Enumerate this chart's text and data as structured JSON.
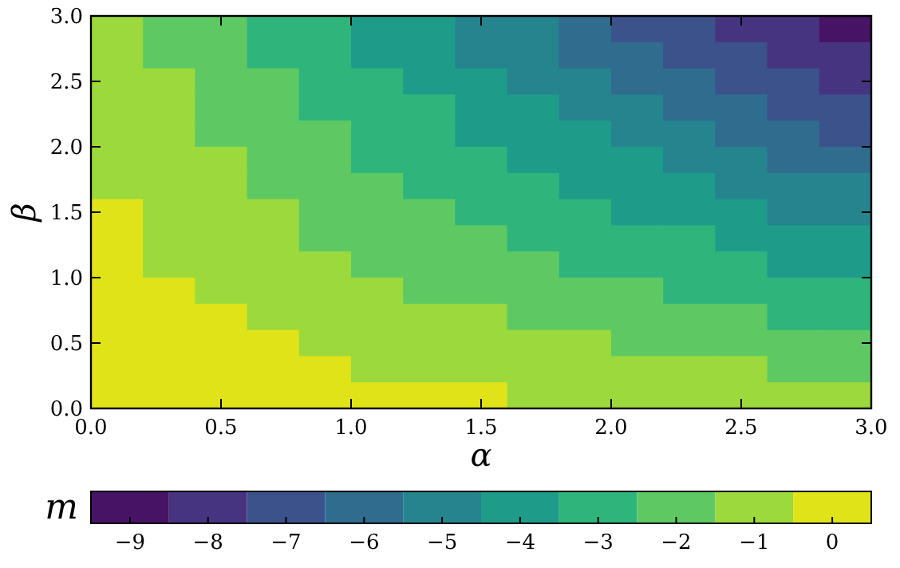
{
  "chart_data": {
    "type": "heatmap",
    "xlabel": "α",
    "ylabel": "β",
    "clabel": "m",
    "x": [
      0.1,
      0.3,
      0.5,
      0.7,
      0.9,
      1.1,
      1.3,
      1.5,
      1.7,
      1.9,
      2.1,
      2.3,
      2.5,
      2.7,
      2.9
    ],
    "y": [
      2.9,
      2.7,
      2.5,
      2.3,
      2.1,
      1.9,
      1.7,
      1.5,
      1.3,
      1.1,
      0.9,
      0.7,
      0.5,
      0.3,
      0.1
    ],
    "xlim": [
      0,
      3
    ],
    "ylim": [
      0,
      3
    ],
    "xticks": [
      {
        "value": 0,
        "label": "0.0"
      },
      {
        "value": 0.5,
        "label": "0.5"
      },
      {
        "value": 1,
        "label": "1.0"
      },
      {
        "value": 1.5,
        "label": "1.5"
      },
      {
        "value": 2,
        "label": "2.0"
      },
      {
        "value": 2.5,
        "label": "2.5"
      },
      {
        "value": 3,
        "label": "3.0"
      }
    ],
    "yticks": [
      {
        "value": 0,
        "label": "0.0"
      },
      {
        "value": 0.5,
        "label": "0.5"
      },
      {
        "value": 1,
        "label": "1.0"
      },
      {
        "value": 1.5,
        "label": "1.5"
      },
      {
        "value": 2,
        "label": "2.0"
      },
      {
        "value": 2.5,
        "label": "2.5"
      },
      {
        "value": 3,
        "label": "3.0"
      }
    ],
    "clim": [
      -9.5,
      0.5
    ],
    "cticks": [
      {
        "value": -9,
        "label": "−9"
      },
      {
        "value": -8,
        "label": "−8"
      },
      {
        "value": -7,
        "label": "−7"
      },
      {
        "value": -6,
        "label": "−6"
      },
      {
        "value": -5,
        "label": "−5"
      },
      {
        "value": -4,
        "label": "−4"
      },
      {
        "value": -3,
        "label": "−3"
      },
      {
        "value": -2,
        "label": "−2"
      },
      {
        "value": -1,
        "label": "−1"
      },
      {
        "value": 0,
        "label": "0"
      }
    ],
    "cells": [
      [
        -1,
        -2,
        -2,
        -3,
        -3,
        -4,
        -4,
        -5,
        -5,
        -6,
        -7,
        -7,
        -8,
        -8,
        -9
      ],
      [
        -1,
        -2,
        -2,
        -3,
        -3,
        -4,
        -4,
        -5,
        -5,
        -6,
        -6,
        -7,
        -7,
        -8,
        -8
      ],
      [
        -1,
        -1,
        -2,
        -2,
        -3,
        -3,
        -4,
        -4,
        -5,
        -5,
        -6,
        -6,
        -7,
        -7,
        -8
      ],
      [
        -1,
        -1,
        -2,
        -2,
        -3,
        -3,
        -3,
        -4,
        -4,
        -5,
        -5,
        -6,
        -6,
        -7,
        -7
      ],
      [
        -1,
        -1,
        -2,
        -2,
        -2,
        -3,
        -3,
        -4,
        -4,
        -4,
        -5,
        -5,
        -6,
        -6,
        -7
      ],
      [
        -1,
        -1,
        -1,
        -2,
        -2,
        -3,
        -3,
        -3,
        -4,
        -4,
        -4,
        -5,
        -5,
        -6,
        -6
      ],
      [
        -1,
        -1,
        -1,
        -2,
        -2,
        -2,
        -3,
        -3,
        -3,
        -4,
        -4,
        -4,
        -5,
        -5,
        -5
      ],
      [
        0,
        -1,
        -1,
        -1,
        -2,
        -2,
        -2,
        -3,
        -3,
        -3,
        -4,
        -4,
        -4,
        -5,
        -5
      ],
      [
        0,
        -1,
        -1,
        -1,
        -2,
        -2,
        -2,
        -2,
        -3,
        -3,
        -3,
        -3,
        -4,
        -4,
        -4
      ],
      [
        0,
        -1,
        -1,
        -1,
        -1,
        -2,
        -2,
        -2,
        -2,
        -3,
        -3,
        -3,
        -3,
        -4,
        -4
      ],
      [
        0,
        0,
        -1,
        -1,
        -1,
        -1,
        -2,
        -2,
        -2,
        -2,
        -2,
        -3,
        -3,
        -3,
        -3
      ],
      [
        0,
        0,
        0,
        -1,
        -1,
        -1,
        -1,
        -1,
        -2,
        -2,
        -2,
        -2,
        -2,
        -3,
        -3
      ],
      [
        0,
        0,
        0,
        0,
        -1,
        -1,
        -1,
        -1,
        -1,
        -1,
        -2,
        -2,
        -2,
        -2,
        -2
      ],
      [
        0,
        0,
        0,
        0,
        0,
        -1,
        -1,
        -1,
        -1,
        -1,
        -1,
        -1,
        -1,
        -2,
        -2
      ],
      [
        0,
        0,
        0,
        0,
        0,
        0,
        0,
        0,
        -1,
        -1,
        -1,
        -1,
        -1,
        -1,
        -1
      ]
    ]
  }
}
